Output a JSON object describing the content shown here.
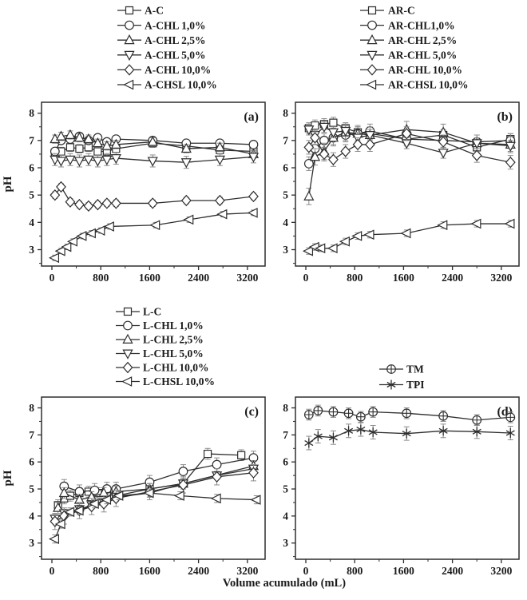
{
  "figure": {
    "xlabel": "Volume acumulado (mL)",
    "ylabel": "pH",
    "colors": {
      "line": "#2e2e2e",
      "error": "#8c8c8c",
      "text": "#1a1a1a",
      "background": "#ffffff"
    }
  },
  "chart_data": [
    {
      "type": "line",
      "panel": "(a)",
      "ylabel": "pH",
      "xlim": [
        -170,
        3490
      ],
      "ylim": [
        2.4,
        8.4
      ],
      "xticks": [
        0,
        800,
        1600,
        2400,
        3200
      ],
      "xminor": [
        400,
        1200,
        2000,
        2800
      ],
      "yticks": [
        3,
        4,
        5,
        6,
        7,
        8
      ],
      "yminor": [
        2.5,
        3.5,
        4.5,
        5.5,
        6.5,
        7.5
      ],
      "legend_position": "above",
      "grid": false,
      "series": [
        {
          "name": "A-C",
          "marker": "square",
          "err": 0.15,
          "x": [
            50,
            150,
            300,
            450,
            600,
            750,
            900,
            1050,
            1650,
            2200,
            2750,
            3300
          ],
          "y": [
            6.55,
            6.6,
            6.75,
            6.7,
            6.75,
            6.6,
            6.6,
            6.7,
            6.9,
            6.8,
            6.65,
            6.6
          ]
        },
        {
          "name": "A-CHL 1,0%",
          "marker": "circle",
          "err": 0.12,
          "x": [
            50,
            150,
            300,
            450,
            600,
            750,
            900,
            1050,
            1650,
            2200,
            2750,
            3300
          ],
          "y": [
            6.6,
            7.0,
            7.05,
            7.15,
            7.0,
            7.1,
            6.95,
            7.05,
            7.0,
            6.9,
            6.9,
            6.85
          ]
        },
        {
          "name": "A-CHL 2,5%",
          "marker": "triangle-up",
          "err": 0.15,
          "x": [
            50,
            150,
            300,
            450,
            600,
            750,
            900,
            1050,
            1650,
            2200,
            2750,
            3300
          ],
          "y": [
            7.05,
            7.15,
            7.2,
            7.1,
            7.05,
            6.9,
            6.8,
            6.85,
            6.95,
            6.7,
            6.75,
            6.5
          ]
        },
        {
          "name": "A-CHL 5,0%",
          "marker": "triangle-down",
          "err": 0.22,
          "x": [
            50,
            150,
            300,
            450,
            600,
            750,
            900,
            1050,
            1650,
            2200,
            2750,
            3300
          ],
          "y": [
            6.3,
            6.25,
            6.3,
            6.25,
            6.3,
            6.25,
            6.3,
            6.35,
            6.25,
            6.2,
            6.3,
            6.4
          ]
        },
        {
          "name": "A-CHL 10,0%",
          "marker": "diamond",
          "err": 0.12,
          "x": [
            50,
            150,
            300,
            450,
            600,
            750,
            900,
            1050,
            1650,
            2200,
            2750,
            3300
          ],
          "y": [
            5.0,
            5.3,
            4.75,
            4.65,
            4.6,
            4.65,
            4.7,
            4.7,
            4.7,
            4.8,
            4.8,
            4.95
          ]
        },
        {
          "name": "A-CHSL 10,0%",
          "marker": "triangle-left",
          "err": 0.1,
          "x": [
            50,
            150,
            250,
            350,
            500,
            650,
            800,
            950,
            1700,
            2250,
            2800,
            3300
          ],
          "y": [
            2.7,
            2.95,
            3.1,
            3.3,
            3.5,
            3.6,
            3.7,
            3.85,
            3.9,
            4.1,
            4.3,
            4.35
          ]
        }
      ]
    },
    {
      "type": "line",
      "panel": "(b)",
      "ylabel": "",
      "xlim": [
        -170,
        3490
      ],
      "ylim": [
        2.4,
        8.4
      ],
      "xticks": [
        0,
        800,
        1600,
        2400,
        3200
      ],
      "xminor": [
        400,
        1200,
        2000,
        2800
      ],
      "yticks": [
        3,
        4,
        5,
        6,
        7,
        8
      ],
      "yminor": [
        2.5,
        3.5,
        4.5,
        5.5,
        6.5,
        7.5
      ],
      "legend_position": "above",
      "grid": false,
      "series": [
        {
          "name": "AR-C",
          "marker": "square",
          "err": 0.2,
          "x": [
            50,
            150,
            300,
            450,
            650,
            850,
            1050,
            1650,
            2250,
            2800,
            3350
          ],
          "y": [
            7.45,
            7.55,
            7.6,
            7.65,
            7.45,
            7.3,
            7.25,
            7.05,
            7.2,
            6.75,
            7.05
          ]
        },
        {
          "name": "AR-CHL1,0%",
          "marker": "circle",
          "err": 0.25,
          "x": [
            50,
            150,
            300,
            450,
            650,
            850,
            1050,
            1650,
            2250,
            2800,
            3350
          ],
          "y": [
            6.15,
            6.7,
            7.0,
            7.1,
            7.2,
            7.25,
            7.35,
            7.05,
            7.0,
            6.95,
            7.0
          ]
        },
        {
          "name": "AR-CHL 2,5%",
          "marker": "triangle-up",
          "err": 0.3,
          "x": [
            50,
            150,
            300,
            450,
            650,
            850,
            1050,
            1650,
            2250,
            2800,
            3350
          ],
          "y": [
            4.95,
            6.4,
            6.6,
            7.1,
            7.3,
            7.25,
            7.2,
            7.4,
            7.3,
            6.9,
            6.85
          ]
        },
        {
          "name": "AR-CHL 5,0%",
          "marker": "triangle-down",
          "err": 0.2,
          "x": [
            50,
            150,
            300,
            450,
            650,
            850,
            1050,
            1650,
            2250,
            2800,
            3350
          ],
          "y": [
            7.4,
            7.2,
            7.5,
            7.3,
            7.35,
            7.1,
            7.2,
            6.9,
            6.55,
            6.9,
            6.8
          ]
        },
        {
          "name": "AR-CHL 10,0%",
          "marker": "diamond",
          "err": 0.25,
          "x": [
            50,
            150,
            300,
            450,
            650,
            850,
            1050,
            1650,
            2250,
            2800,
            3350
          ],
          "y": [
            6.75,
            7.1,
            6.5,
            6.3,
            6.6,
            6.85,
            6.85,
            7.25,
            6.95,
            6.45,
            6.2
          ]
        },
        {
          "name": "AR-CHSL 10,0%",
          "marker": "triangle-left",
          "err": 0.12,
          "x": [
            50,
            150,
            250,
            450,
            650,
            850,
            1050,
            1650,
            2250,
            2800,
            3350
          ],
          "y": [
            2.95,
            3.1,
            3.05,
            3.05,
            3.3,
            3.5,
            3.55,
            3.6,
            3.9,
            3.95,
            3.95
          ]
        }
      ]
    },
    {
      "type": "line",
      "panel": "(c)",
      "ylabel": "pH",
      "xlim": [
        -170,
        3490
      ],
      "ylim": [
        2.4,
        8.4
      ],
      "xticks": [
        0,
        800,
        1600,
        2400,
        3200
      ],
      "xminor": [
        400,
        1200,
        2000,
        2800
      ],
      "yticks": [
        3,
        4,
        5,
        6,
        7,
        8
      ],
      "yminor": [
        2.5,
        3.5,
        4.5,
        5.5,
        6.5,
        7.5
      ],
      "legend_position": "above",
      "grid": false,
      "series": [
        {
          "name": "L-C",
          "marker": "square",
          "err": 0.2,
          "x": [
            100,
            200,
            300,
            450,
            600,
            750,
            900,
            1050,
            1600,
            2150,
            2550,
            3100
          ],
          "y": [
            4.4,
            4.65,
            4.75,
            4.85,
            4.9,
            4.85,
            4.9,
            4.75,
            5.0,
            5.2,
            6.3,
            6.25
          ]
        },
        {
          "name": "L-CHL 1,0%",
          "marker": "circle",
          "err": 0.25,
          "x": [
            200,
            450,
            700,
            900,
            1050,
            1600,
            2150,
            2700,
            3300
          ],
          "y": [
            5.1,
            4.9,
            4.95,
            5.0,
            5.0,
            5.25,
            5.65,
            5.9,
            6.15
          ]
        },
        {
          "name": "L-CHL 2,5%",
          "marker": "triangle-up",
          "err": 0.2,
          "x": [
            100,
            200,
            450,
            650,
            850,
            1050,
            1600,
            2150,
            3300
          ],
          "y": [
            4.3,
            4.85,
            4.6,
            4.7,
            4.85,
            4.9,
            5.0,
            5.2,
            5.85
          ]
        },
        {
          "name": "L-CHL 5,0%",
          "marker": "triangle-down",
          "err": 0.15,
          "x": [
            50,
            200,
            450,
            650,
            850,
            1050,
            1600,
            2150,
            2700,
            3300
          ],
          "y": [
            3.9,
            4.1,
            4.25,
            4.4,
            4.5,
            4.7,
            4.85,
            5.2,
            5.5,
            5.75
          ]
        },
        {
          "name": "L-CHL 10,0%",
          "marker": "diamond",
          "err": 0.3,
          "x": [
            50,
            200,
            450,
            650,
            850,
            1050,
            1600,
            2150,
            2700,
            3300
          ],
          "y": [
            3.8,
            4.0,
            4.2,
            4.35,
            4.45,
            4.65,
            4.9,
            5.15,
            5.45,
            5.6
          ]
        },
        {
          "name": "L-CHSL 10,0%",
          "marker": "triangle-left",
          "err": 0.15,
          "x": [
            50,
            150,
            300,
            450,
            700,
            900,
            1100,
            1600,
            2100,
            2700,
            3350
          ],
          "y": [
            3.15,
            3.7,
            4.15,
            4.2,
            4.45,
            4.6,
            4.75,
            4.85,
            4.75,
            4.65,
            4.6
          ]
        }
      ]
    },
    {
      "type": "line",
      "panel": "(d)",
      "ylabel": "",
      "xlim": [
        -170,
        3490
      ],
      "ylim": [
        2.4,
        8.4
      ],
      "xticks": [
        0,
        800,
        1600,
        2400,
        3200
      ],
      "xminor": [
        400,
        1200,
        2000,
        2800
      ],
      "yticks": [
        3,
        4,
        5,
        6,
        7,
        8
      ],
      "yminor": [
        2.5,
        3.5,
        4.5,
        5.5,
        6.5,
        7.5
      ],
      "legend_position": "above",
      "grid": false,
      "series": [
        {
          "name": "TM",
          "marker": "circle-plus",
          "err": 0.2,
          "x": [
            50,
            200,
            450,
            700,
            900,
            1100,
            1650,
            2250,
            2800,
            3350
          ],
          "y": [
            7.75,
            7.9,
            7.85,
            7.8,
            7.67,
            7.85,
            7.8,
            7.7,
            7.55,
            7.65
          ]
        },
        {
          "name": "TPI",
          "marker": "asterisk",
          "err": 0.25,
          "x": [
            50,
            200,
            450,
            700,
            900,
            1100,
            1650,
            2250,
            2800,
            3350
          ],
          "y": [
            6.7,
            6.95,
            6.9,
            7.15,
            7.2,
            7.1,
            7.05,
            7.15,
            7.12,
            7.07
          ]
        }
      ]
    }
  ]
}
